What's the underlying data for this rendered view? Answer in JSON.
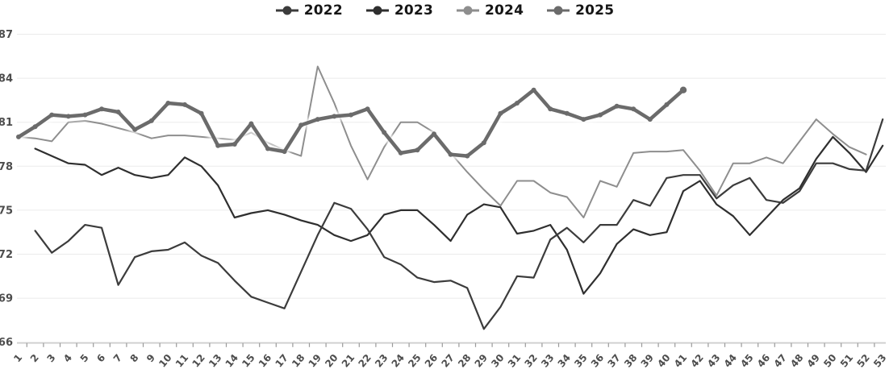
{
  "page": {
    "background": "#ffffff"
  },
  "styles": {
    "grid_color": "#ebebeb",
    "axis_line_color": "#c9c9c9",
    "tick_color": "#9a9a9a",
    "axis_label_color": "#4d4d4d",
    "legend_text_color": "#161616",
    "glow_color": "#ffffff"
  },
  "chart_data": {
    "type": "line",
    "title": "",
    "xlabel": "",
    "ylabel": "",
    "legend_position": "top-center",
    "grid": "horizontal",
    "ylim": [
      66,
      87
    ],
    "y_ticks": [
      87,
      84,
      81,
      78,
      75,
      72,
      69,
      66
    ],
    "x_ticks": [
      1,
      2,
      3,
      4,
      5,
      6,
      7,
      8,
      9,
      10,
      11,
      12,
      13,
      14,
      15,
      16,
      17,
      18,
      19,
      20,
      21,
      22,
      23,
      24,
      25,
      26,
      27,
      28,
      29,
      30,
      31,
      32,
      33,
      34,
      35,
      36,
      37,
      38,
      39,
      40,
      41,
      42,
      43,
      44,
      45,
      46,
      47,
      48,
      49,
      50,
      51,
      52,
      53
    ],
    "series": [
      {
        "name": "2024",
        "color": "#8e8e8e",
        "line_width": 2,
        "emphasis": false,
        "values": [
          80.0,
          79.9,
          79.7,
          81.0,
          81.1,
          80.9,
          80.6,
          80.3,
          79.9,
          80.1,
          80.1,
          80.0,
          79.9,
          79.8,
          80.3,
          79.6,
          79.1,
          78.7,
          84.8,
          82.3,
          79.4,
          77.1,
          79.3,
          81.0,
          81.0,
          80.3,
          78.9,
          77.6,
          76.4,
          75.3,
          77.0,
          77.0,
          76.2,
          75.9,
          74.5,
          77.0,
          76.6,
          78.9,
          79.0,
          79.0,
          79.1,
          77.7,
          76.0,
          78.2,
          78.2,
          78.6,
          78.2,
          79.7,
          81.2,
          80.2,
          79.3,
          78.8,
          null
        ]
      },
      {
        "name": "2023",
        "color": "#2f2f2f",
        "line_width": 2.2,
        "emphasis": false,
        "values": [
          null,
          79.2,
          78.7,
          78.2,
          78.1,
          77.4,
          77.9,
          77.4,
          77.2,
          77.4,
          78.6,
          78.0,
          76.7,
          74.5,
          74.8,
          75.0,
          74.7,
          74.3,
          74.0,
          73.3,
          72.9,
          73.3,
          74.7,
          75.0,
          75.0,
          74.0,
          72.9,
          74.7,
          75.4,
          75.2,
          73.4,
          73.6,
          74.0,
          72.3,
          69.3,
          70.7,
          72.7,
          73.7,
          73.3,
          73.5,
          76.3,
          77.0,
          75.4,
          74.6,
          73.3,
          74.5,
          75.7,
          76.5,
          78.5,
          80.0,
          78.9,
          77.6,
          79.4
        ]
      },
      {
        "name": "2022",
        "color": "#3c3c3c",
        "line_width": 2.2,
        "emphasis": false,
        "values": [
          null,
          73.6,
          72.1,
          72.9,
          74.0,
          73.8,
          69.9,
          71.8,
          72.2,
          72.3,
          72.8,
          71.9,
          71.4,
          70.2,
          69.1,
          68.7,
          68.3,
          70.8,
          73.3,
          75.5,
          75.1,
          73.7,
          71.8,
          71.3,
          70.4,
          70.1,
          70.2,
          69.7,
          66.9,
          68.4,
          70.5,
          70.4,
          73.0,
          73.8,
          72.8,
          74.0,
          74.0,
          75.7,
          75.3,
          77.2,
          77.4,
          77.4,
          75.8,
          76.7,
          77.2,
          75.7,
          75.5,
          76.3,
          78.2,
          78.2,
          77.8,
          77.7,
          81.2
        ]
      },
      {
        "name": "2025",
        "color": "#6b6b6b",
        "line_width": 4.5,
        "emphasis": true,
        "values": [
          80.0,
          80.7,
          81.5,
          81.4,
          81.5,
          81.9,
          81.7,
          80.5,
          81.1,
          82.3,
          82.2,
          81.6,
          79.4,
          79.5,
          80.9,
          79.2,
          79.0,
          80.8,
          81.2,
          81.4,
          81.5,
          81.9,
          80.3,
          78.9,
          79.1,
          80.2,
          78.8,
          78.7,
          79.6,
          81.6,
          82.3,
          83.2,
          81.9,
          81.6,
          81.2,
          81.5,
          82.1,
          81.9,
          81.2,
          82.2,
          83.2,
          null,
          null,
          null,
          null,
          null,
          null,
          null,
          null,
          null,
          null,
          null,
          null
        ]
      }
    ],
    "legend_order": [
      "2022",
      "2023",
      "2024",
      "2025"
    ]
  }
}
